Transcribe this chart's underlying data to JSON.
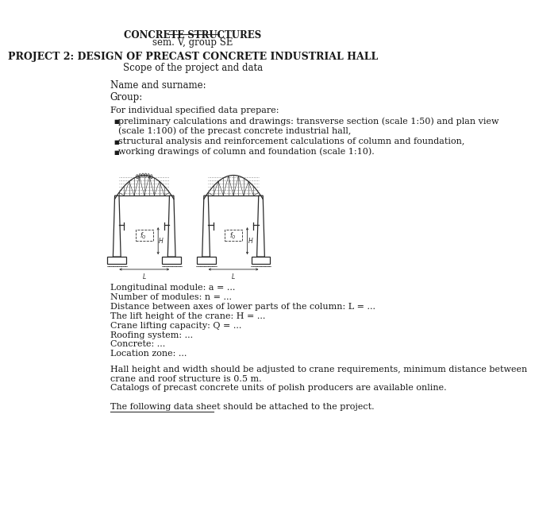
{
  "title1": "CONCRETE STRUCTURES",
  "title2": "sem. V, group SE",
  "title3": "PROJECT 2: DESIGN OF PRECAST CONCRETE INDUSTRIAL HALL",
  "title4": "Scope of the project and data",
  "name_label": "Name and surname:",
  "group_label": "Group:",
  "intro": "For individual specified data prepare:",
  "bullets": [
    "preliminary calculations and drawings: transverse section (scale 1:50) and plan view\n(scale 1:100) of the precast concrete industrial hall,",
    "structural analysis and reinforcement calculations of column and foundation,",
    "working drawings of column and foundation (scale 1:10)."
  ],
  "data_lines": [
    "Longitudinal module: a = ...",
    "Number of modules: n = ...",
    "Distance between axes of lower parts of the column: L = ...",
    "The lift height of the crane: H = ...",
    "Crane lifting capacity: Q = ...",
    "Roofing system: ...",
    "Concrete: ...",
    "Location zone: ..."
  ],
  "para1": "Hall height and width should be adjusted to crane requirements, minimum distance between\ncrane and roof structure is 0.5 m.\nCatalogs of precast concrete units of polish producers are available online.",
  "para2": "The following data sheet should be attached to the project.",
  "bg_color": "#ffffff",
  "text_color": "#1a1a1a"
}
